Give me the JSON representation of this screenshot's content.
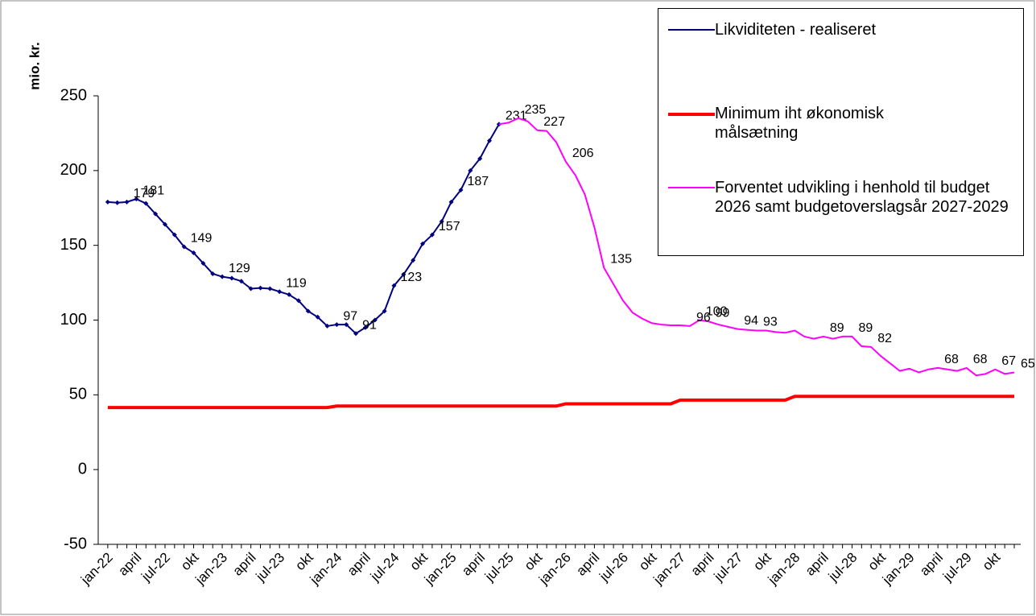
{
  "chart_data": {
    "type": "line",
    "y_label": "mio. kr.",
    "ylim": [
      -50,
      250
    ],
    "yticks": [
      -50,
      0,
      50,
      100,
      150,
      200,
      250
    ],
    "categories": [
      "jan-22",
      null,
      null,
      "april",
      null,
      null,
      "jul-22",
      null,
      null,
      "okt",
      null,
      null,
      "jan-23",
      null,
      null,
      "april",
      null,
      null,
      "jul-23",
      null,
      null,
      "okt",
      null,
      null,
      "jan-24",
      null,
      null,
      "april",
      null,
      null,
      "jul-24",
      null,
      null,
      "okt",
      null,
      null,
      "jan-25",
      null,
      null,
      "april",
      null,
      null,
      "jul-25",
      null,
      null,
      "okt",
      null,
      null,
      "jan-26",
      null,
      null,
      "april",
      null,
      null,
      "jul-26",
      null,
      null,
      "okt",
      null,
      null,
      "jan-27",
      null,
      null,
      "april",
      null,
      null,
      "jul-27",
      null,
      null,
      "okt",
      null,
      null,
      "jan-28",
      null,
      null,
      "april",
      null,
      null,
      "jul-28",
      null,
      null,
      "okt",
      null,
      null,
      "jan-29",
      null,
      null,
      "april",
      null,
      null,
      "jul-29",
      null,
      null,
      "okt",
      null,
      null
    ],
    "series": [
      {
        "name": "Likviditeten - realiseret",
        "color": "#000080",
        "markers": true,
        "values": [
          179,
          178.5,
          179,
          181,
          178,
          171,
          164,
          157,
          149,
          145,
          138,
          131,
          129,
          128,
          126,
          121,
          121.5,
          121,
          119,
          117,
          113,
          106,
          102,
          96,
          97,
          97,
          91,
          95,
          100,
          106,
          123,
          130.5,
          140,
          151,
          157,
          166,
          179,
          187,
          200,
          208,
          220,
          231,
          null,
          null,
          null,
          null,
          null,
          null,
          null,
          null,
          null,
          null,
          null,
          null,
          null,
          null,
          null,
          null,
          null,
          null,
          null,
          null,
          null,
          null,
          null,
          null,
          null,
          null,
          null,
          null,
          null,
          null,
          null,
          null,
          null,
          null,
          null,
          null,
          null,
          null,
          null,
          null,
          null,
          null,
          null,
          null,
          null,
          null,
          null,
          null,
          null,
          null,
          null,
          null,
          null,
          null
        ],
        "value_labels": [
          null,
          null,
          "179",
          "181",
          null,
          null,
          null,
          null,
          "149",
          null,
          null,
          null,
          "129",
          null,
          null,
          null,
          null,
          null,
          "119",
          null,
          null,
          null,
          null,
          null,
          "97",
          null,
          "91",
          null,
          null,
          null,
          "123",
          null,
          null,
          null,
          "157",
          null,
          null,
          "187",
          null,
          null,
          null,
          "231",
          null,
          null,
          null,
          null,
          null,
          null,
          null,
          null,
          null,
          null,
          null,
          null,
          null,
          null,
          null,
          null,
          null,
          null,
          null,
          null,
          null,
          null,
          null,
          null,
          null,
          null,
          null,
          null,
          null,
          null,
          null,
          null,
          null,
          null,
          null,
          null,
          null,
          null,
          null,
          null,
          null,
          null,
          null,
          null,
          null,
          null,
          null,
          null,
          null,
          null,
          null,
          null,
          null,
          null
        ]
      },
      {
        "name": "Minimum iht økonomisk målsætning",
        "color": "#ff0000",
        "width": 4,
        "values": [
          41.5,
          41.5,
          41.5,
          41.5,
          41.5,
          41.5,
          41.5,
          41.5,
          41.5,
          41.5,
          41.5,
          41.5,
          41.5,
          41.5,
          41.5,
          41.5,
          41.5,
          41.5,
          41.5,
          41.5,
          41.5,
          41.5,
          41.5,
          41.5,
          42.5,
          42.5,
          42.5,
          42.5,
          42.5,
          42.5,
          42.5,
          42.5,
          42.5,
          42.5,
          42.5,
          42.5,
          42.5,
          42.5,
          42.5,
          42.5,
          42.5,
          42.5,
          42.5,
          42.5,
          42.5,
          42.5,
          42.5,
          42.5,
          44,
          44,
          44,
          44,
          44,
          44,
          44,
          44,
          44,
          44,
          44,
          44,
          46.5,
          46.5,
          46.5,
          46.5,
          46.5,
          46.5,
          46.5,
          46.5,
          46.5,
          46.5,
          46.5,
          46.5,
          49,
          49,
          49,
          49,
          49,
          49,
          49,
          49,
          49,
          49,
          49,
          49,
          49,
          49,
          49,
          49,
          49,
          49,
          49,
          49,
          49,
          49,
          49,
          49
        ]
      },
      {
        "name": "Forventet udvikling i henhold til budget 2026 samt budgetoverslagsår 2027-2029",
        "color": "#ff00ff",
        "width": 2,
        "values": [
          null,
          null,
          null,
          null,
          null,
          null,
          null,
          null,
          null,
          null,
          null,
          null,
          null,
          null,
          null,
          null,
          null,
          null,
          null,
          null,
          null,
          null,
          null,
          null,
          null,
          null,
          null,
          null,
          null,
          null,
          null,
          null,
          null,
          null,
          null,
          null,
          null,
          null,
          null,
          null,
          null,
          231,
          232,
          235,
          233,
          227,
          226.5,
          219,
          206,
          197,
          184,
          162,
          135,
          124,
          113,
          105,
          101,
          98,
          97,
          96.5,
          96.5,
          96,
          100,
          99,
          97,
          95.5,
          94,
          93.5,
          93,
          93,
          92,
          91.5,
          93,
          89,
          87.5,
          89,
          87.5,
          89,
          89,
          82.5,
          82,
          76,
          71,
          66,
          67.5,
          65,
          67,
          68,
          67,
          66,
          68,
          63,
          64,
          67,
          64,
          65
        ],
        "value_labels": [
          null,
          null,
          null,
          null,
          null,
          null,
          null,
          null,
          null,
          null,
          null,
          null,
          null,
          null,
          null,
          null,
          null,
          null,
          null,
          null,
          null,
          null,
          null,
          null,
          null,
          null,
          null,
          null,
          null,
          null,
          null,
          null,
          null,
          null,
          null,
          null,
          null,
          null,
          null,
          null,
          null,
          null,
          null,
          "235",
          null,
          "227",
          null,
          null,
          "206",
          null,
          null,
          null,
          "135",
          null,
          null,
          null,
          null,
          null,
          null,
          null,
          null,
          "96",
          "100",
          "99",
          null,
          null,
          "94",
          null,
          "93",
          null,
          null,
          null,
          null,
          null,
          null,
          "89",
          null,
          null,
          "89",
          null,
          "82",
          null,
          null,
          null,
          null,
          null,
          null,
          "68",
          null,
          null,
          "68",
          null,
          null,
          "67",
          null,
          "65"
        ]
      }
    ]
  }
}
